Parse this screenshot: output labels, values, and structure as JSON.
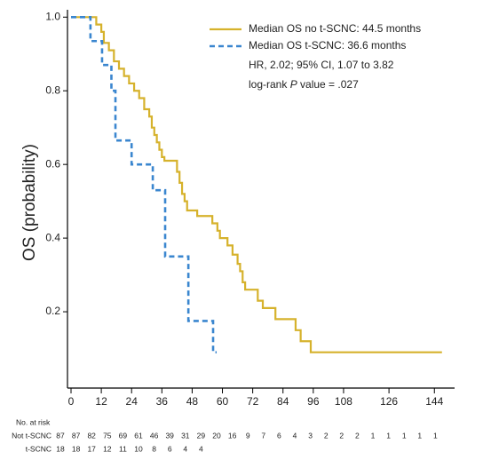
{
  "chart_data": {
    "type": "step",
    "y_label": "OS (probability)",
    "xlim": [
      0,
      152
    ],
    "ylim": [
      0,
      1.02
    ],
    "xticks": [
      0,
      12,
      24,
      36,
      48,
      60,
      72,
      84,
      96,
      108,
      126,
      144
    ],
    "yticks": [
      0.2,
      0.4,
      0.6,
      0.8,
      {
        "value": 1,
        "label": "1.0"
      }
    ],
    "series": [
      {
        "name": "Median OS no t-SCNC: 44.5 months",
        "color": "#d6b22c",
        "dash": false,
        "x": [
          0,
          10,
          12,
          13,
          15,
          17,
          19,
          21,
          23,
          25,
          27,
          29,
          31,
          32,
          33,
          34,
          35,
          36,
          37,
          42,
          43,
          44,
          45,
          46,
          50,
          56,
          58,
          59,
          62,
          64,
          66,
          67,
          68,
          69,
          74,
          76,
          81,
          89,
          91,
          95,
          147
        ],
        "values": [
          1,
          0.98,
          0.96,
          0.93,
          0.91,
          0.88,
          0.86,
          0.84,
          0.82,
          0.8,
          0.78,
          0.75,
          0.73,
          0.7,
          0.68,
          0.66,
          0.64,
          0.62,
          0.61,
          0.58,
          0.55,
          0.52,
          0.5,
          0.475,
          0.46,
          0.44,
          0.42,
          0.4,
          0.38,
          0.355,
          0.33,
          0.31,
          0.28,
          0.26,
          0.23,
          0.21,
          0.18,
          0.15,
          0.12,
          0.09,
          0.09
        ]
      },
      {
        "name": "Median OS t-SCNC: 36.6 months",
        "color": "#3a86cf",
        "dash": true,
        "x": [
          0,
          7.7,
          12.3,
          16,
          17.6,
          24,
          32.4,
          37.3,
          46.5,
          56.3,
          57.7
        ],
        "values": [
          1,
          0.935,
          0.87,
          0.8,
          0.665,
          0.6,
          0.53,
          0.35,
          0.175,
          0.09,
          0.09
        ]
      }
    ],
    "annotations": [
      {
        "parts": [
          "HR, 2.02; 95% CI, 1.07 to 3.82"
        ]
      },
      {
        "parts": [
          "log-rank ",
          "P",
          " value = .027"
        ]
      }
    ],
    "risk_table": {
      "title": "No. at risk",
      "rows": [
        {
          "name": "Not t-SCNC",
          "values": [
            87,
            87,
            82,
            75,
            69,
            61,
            46,
            39,
            31,
            29,
            20,
            16,
            9,
            7,
            6,
            4,
            3,
            2,
            2,
            2,
            1,
            1,
            1,
            1,
            1
          ]
        },
        {
          "name": "t-SCNC",
          "values": [
            18,
            18,
            17,
            12,
            11,
            10,
            8,
            6,
            4,
            4
          ]
        }
      ]
    }
  }
}
